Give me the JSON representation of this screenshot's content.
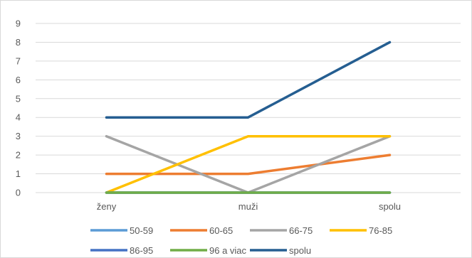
{
  "chart_data": {
    "type": "line",
    "categories": [
      "ženy",
      "muži",
      "spolu"
    ],
    "ylim": [
      0,
      9
    ],
    "yticks": [
      0,
      1,
      2,
      3,
      4,
      5,
      6,
      7,
      8,
      9
    ],
    "grid": true,
    "legend_position": "bottom",
    "title": "",
    "xlabel": "",
    "ylabel": "",
    "series": [
      {
        "name": "50-59",
        "color": "#5b9bd5",
        "values": [
          0,
          0,
          0
        ]
      },
      {
        "name": "60-65",
        "color": "#ed7d31",
        "values": [
          1,
          1,
          2
        ]
      },
      {
        "name": "66-75",
        "color": "#a5a5a5",
        "values": [
          3,
          0,
          3
        ]
      },
      {
        "name": "76-85",
        "color": "#ffc000",
        "values": [
          0,
          3,
          3
        ]
      },
      {
        "name": "86-95",
        "color": "#4472c4",
        "values": [
          0,
          0,
          0
        ]
      },
      {
        "name": "96 a viac",
        "color": "#70ad47",
        "values": [
          0,
          0,
          0
        ]
      },
      {
        "name": "spolu",
        "color": "#255e91",
        "values": [
          4,
          4,
          8
        ]
      }
    ]
  }
}
